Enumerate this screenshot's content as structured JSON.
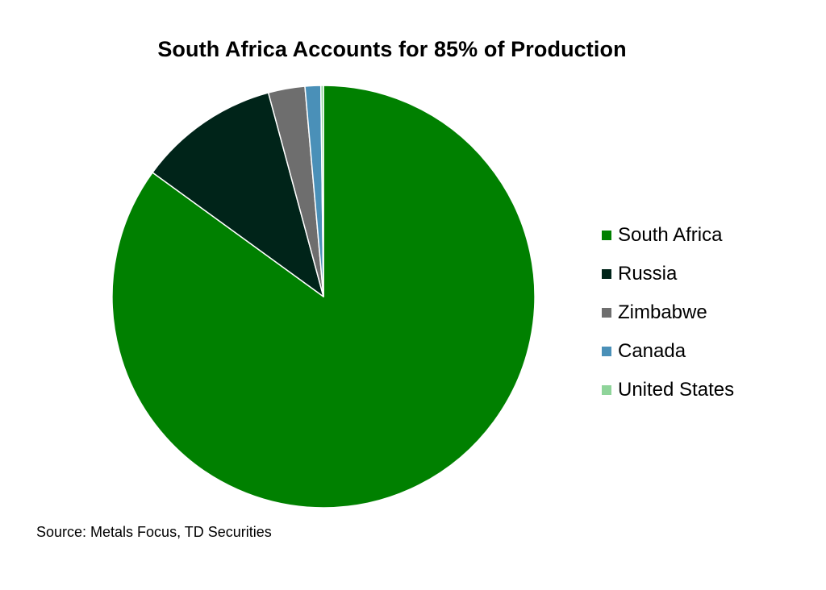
{
  "chart_data": {
    "type": "pie",
    "title": "South Africa Accounts for 85% of Production",
    "slices": [
      {
        "label": "South Africa",
        "value": 85.0,
        "color": "#008000"
      },
      {
        "label": "Russia",
        "value": 10.8,
        "color": "#002419"
      },
      {
        "label": "Zimbabwe",
        "value": 2.8,
        "color": "#6e6e6e"
      },
      {
        "label": "Canada",
        "value": 1.2,
        "color": "#4a90b8"
      },
      {
        "label": "United States",
        "value": 0.2,
        "color": "#8fd49a"
      }
    ],
    "start_angle": "12 o'clock",
    "direction": "clockwise",
    "legend_position": "right"
  },
  "footer": {
    "source": "Source: Metals Focus, TD Securities"
  }
}
